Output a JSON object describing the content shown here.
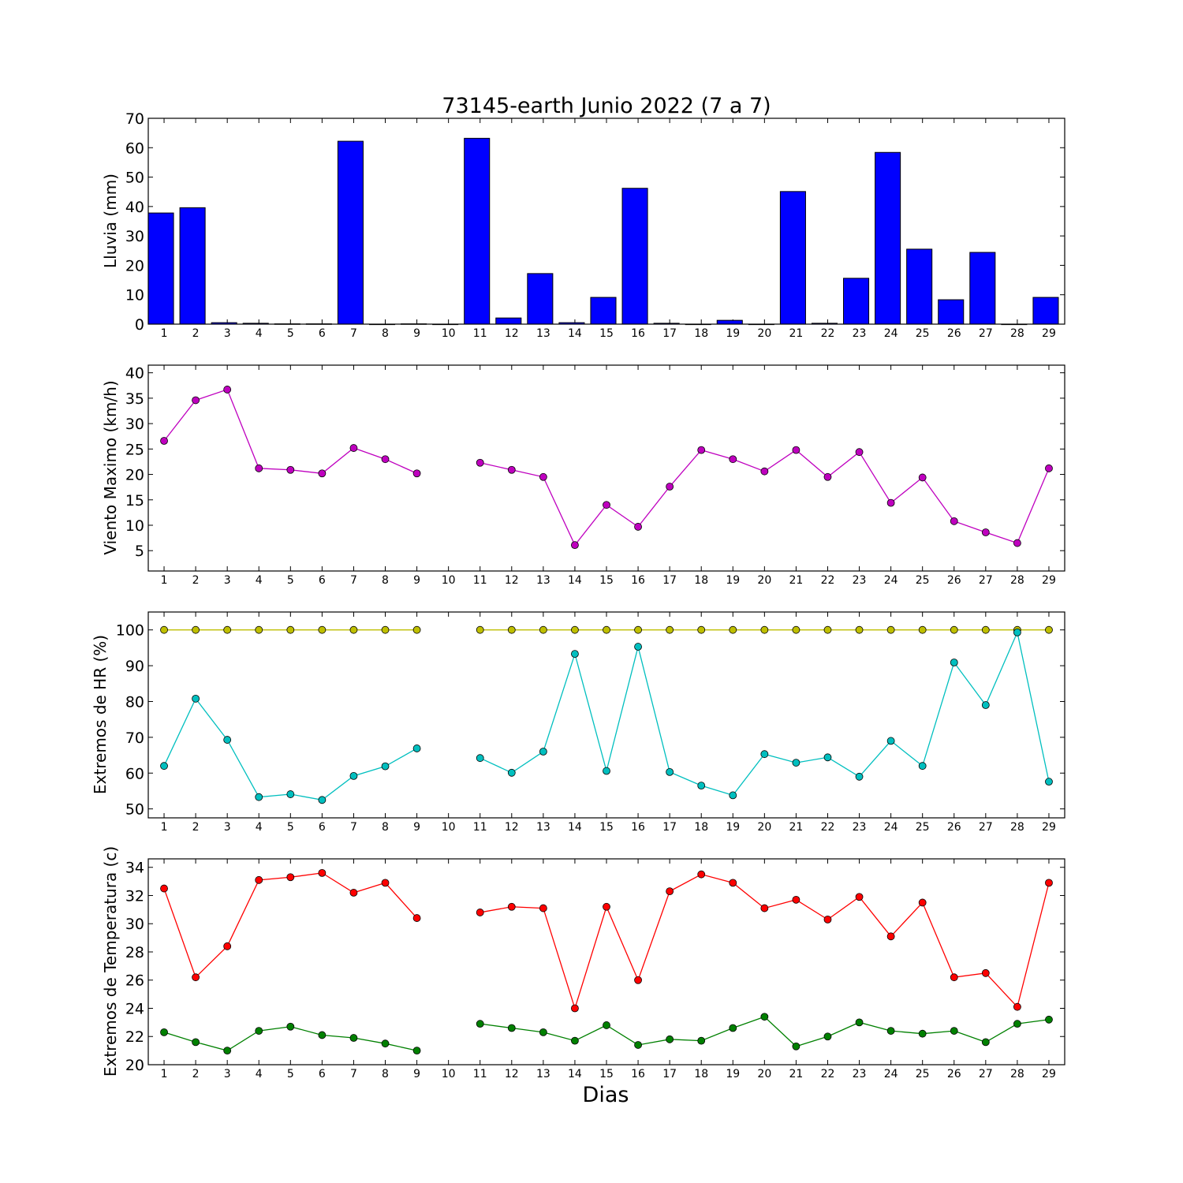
{
  "chart_data": [
    {
      "type": "bar",
      "title": "73145-earth Junio 2022  (7 a 7)",
      "xlabel": "",
      "ylabel": "Lluvia (mm)",
      "categories": [
        "1",
        "2",
        "3",
        "4",
        "5",
        "6",
        "7",
        "8",
        "9",
        "10",
        "11",
        "12",
        "13",
        "14",
        "15",
        "16",
        "17",
        "18",
        "19",
        "20",
        "21",
        "22",
        "23",
        "24",
        "25",
        "26",
        "27",
        "28",
        "29"
      ],
      "values": [
        37.8,
        39.6,
        0.5,
        0.3,
        0.1,
        0.1,
        62.2,
        0,
        0.1,
        0,
        63.2,
        2.1,
        17.2,
        0.5,
        9.1,
        46.2,
        0.3,
        0,
        1.3,
        0,
        45.1,
        0.3,
        15.6,
        58.4,
        25.5,
        8.3,
        24.4,
        0,
        9.1
      ],
      "ylim": [
        0,
        70
      ],
      "yticks": [
        0,
        10,
        20,
        30,
        40,
        50,
        60,
        70
      ],
      "color": "#0000ff"
    },
    {
      "type": "line",
      "ylabel": "Viento Maximo (km/h)",
      "categories": [
        "1",
        "2",
        "3",
        "4",
        "5",
        "6",
        "7",
        "8",
        "9",
        "10",
        "11",
        "12",
        "13",
        "14",
        "15",
        "16",
        "17",
        "18",
        "19",
        "20",
        "21",
        "22",
        "23",
        "24",
        "25",
        "26",
        "27",
        "28",
        "29"
      ],
      "series": [
        {
          "values": [
            26.6,
            34.6,
            36.7,
            21.2,
            20.9,
            20.2,
            25.2,
            23.0,
            20.2,
            null,
            22.3,
            20.9,
            19.5,
            6.1,
            14.0,
            9.7,
            17.6,
            24.8,
            23.0,
            20.6,
            24.8,
            19.5,
            24.4,
            14.4,
            19.4,
            10.8,
            8.6,
            6.5,
            21.2
          ],
          "color": "#bf00bf"
        }
      ],
      "ylim": [
        1,
        41.5
      ],
      "yticks": [
        5,
        10,
        15,
        20,
        25,
        30,
        35,
        40
      ]
    },
    {
      "type": "line",
      "ylabel": "Extremos de HR (%)",
      "categories": [
        "1",
        "2",
        "3",
        "4",
        "5",
        "6",
        "7",
        "8",
        "9",
        "10",
        "11",
        "12",
        "13",
        "14",
        "15",
        "16",
        "17",
        "18",
        "19",
        "20",
        "21",
        "22",
        "23",
        "24",
        "25",
        "26",
        "27",
        "28",
        "29"
      ],
      "series": [
        {
          "values": [
            100,
            100,
            100,
            100,
            100,
            100,
            100,
            100,
            100,
            null,
            100,
            100,
            100,
            100,
            100,
            100,
            100,
            100,
            100,
            100,
            100,
            100,
            100,
            100,
            100,
            100,
            100,
            100,
            100
          ],
          "color": "#bfbf00"
        },
        {
          "values": [
            62.0,
            80.8,
            69.3,
            53.3,
            54.1,
            52.5,
            59.2,
            61.9,
            66.9,
            null,
            64.2,
            60.1,
            66.0,
            93.3,
            60.6,
            95.3,
            60.3,
            56.5,
            53.8,
            65.3,
            62.9,
            64.4,
            59.0,
            69.0,
            62.0,
            90.9,
            79.0,
            99.3,
            57.6
          ],
          "color": "#00bfbf"
        }
      ],
      "ylim": [
        47.5,
        105
      ],
      "yticks": [
        50,
        60,
        70,
        80,
        90,
        100
      ]
    },
    {
      "type": "line",
      "ylabel": "Extremos de Temperatura (c)",
      "xlabel": "Dias",
      "categories": [
        "1",
        "2",
        "3",
        "4",
        "5",
        "6",
        "7",
        "8",
        "9",
        "10",
        "11",
        "12",
        "13",
        "14",
        "15",
        "16",
        "17",
        "18",
        "19",
        "20",
        "21",
        "22",
        "23",
        "24",
        "25",
        "26",
        "27",
        "28",
        "29"
      ],
      "series": [
        {
          "values": [
            32.5,
            26.2,
            28.4,
            33.1,
            33.3,
            33.6,
            32.2,
            32.9,
            30.4,
            null,
            30.8,
            31.2,
            31.1,
            24.0,
            31.2,
            26.0,
            32.3,
            33.5,
            32.9,
            31.1,
            31.7,
            30.3,
            31.9,
            29.1,
            31.5,
            26.2,
            26.5,
            24.1,
            32.9
          ],
          "color": "#ff0000"
        },
        {
          "values": [
            22.3,
            21.6,
            21.0,
            22.4,
            22.7,
            22.1,
            21.9,
            21.5,
            21.0,
            null,
            22.9,
            22.6,
            22.3,
            21.7,
            22.8,
            21.4,
            21.8,
            21.7,
            22.6,
            23.4,
            21.3,
            22.0,
            23.0,
            22.4,
            22.2,
            22.4,
            21.6,
            22.9,
            23.2
          ],
          "color": "#008000"
        }
      ],
      "ylim": [
        20,
        34.6
      ],
      "yticks": [
        20,
        22,
        24,
        26,
        28,
        30,
        32,
        34
      ]
    }
  ]
}
